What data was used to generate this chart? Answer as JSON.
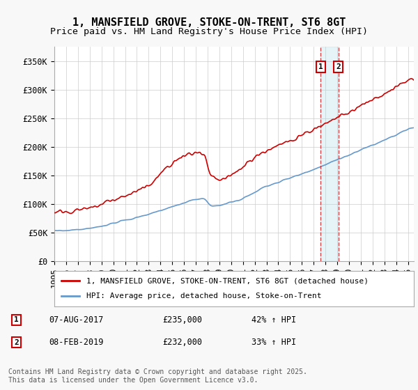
{
  "title": "1, MANSFIELD GROVE, STOKE-ON-TRENT, ST6 8GT",
  "subtitle": "Price paid vs. HM Land Registry's House Price Index (HPI)",
  "ylabel_ticks": [
    "£0",
    "£50K",
    "£100K",
    "£150K",
    "£200K",
    "£250K",
    "£300K",
    "£350K"
  ],
  "ytick_values": [
    0,
    50000,
    100000,
    150000,
    200000,
    250000,
    300000,
    350000
  ],
  "ylim": [
    0,
    375000
  ],
  "xlim_start": 1995.0,
  "xlim_end": 2025.5,
  "marker1_x": 2017.6,
  "marker2_x": 2019.1,
  "marker1_label": "1",
  "marker2_label": "2",
  "sale1_date": "07-AUG-2017",
  "sale1_price": "£235,000",
  "sale1_hpi": "42% ↑ HPI",
  "sale2_date": "08-FEB-2019",
  "sale2_price": "£232,000",
  "sale2_hpi": "33% ↑ HPI",
  "legend_property": "1, MANSFIELD GROVE, STOKE-ON-TRENT, ST6 8GT (detached house)",
  "legend_hpi": "HPI: Average price, detached house, Stoke-on-Trent",
  "footnote": "Contains HM Land Registry data © Crown copyright and database right 2025.\nThis data is licensed under the Open Government Licence v3.0.",
  "property_color": "#cc0000",
  "hpi_color": "#6699cc",
  "bg_color": "#f8f8f8",
  "plot_bg": "#ffffff",
  "grid_color": "#cccccc",
  "title_fontsize": 11,
  "subtitle_fontsize": 9.5,
  "axis_fontsize": 8.5,
  "legend_fontsize": 8,
  "footnote_fontsize": 7
}
